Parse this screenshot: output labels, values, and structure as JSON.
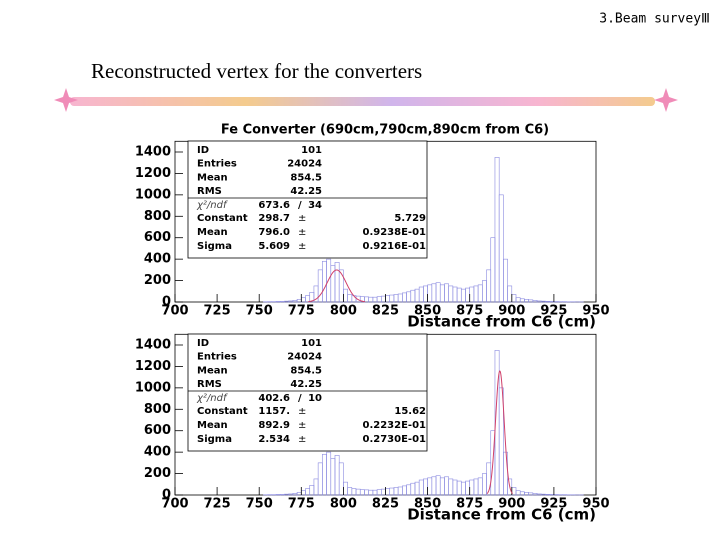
{
  "slide": {
    "section": "3.Beam surveyⅢ",
    "title": "Reconstructed vertex for the converters"
  },
  "chart_data": [
    {
      "type": "histogram",
      "title": "Fe Converter (690cm,790cm,890cm from C6)",
      "x_label": "Distance from C6 (cm)",
      "color": "#8a8ae0",
      "fit_color": "#d0406a",
      "bins": [
        700,
        702.5,
        705,
        707.5,
        710,
        712.5,
        715,
        717.5,
        720,
        722.5,
        725,
        727.5,
        730,
        732.5,
        735,
        737.5,
        740,
        742.5,
        745,
        747.5,
        750,
        752.5,
        755,
        757.5,
        760,
        762.5,
        765,
        767.5,
        770,
        772.5,
        775,
        777.5,
        780,
        782.5,
        785,
        787.5,
        790,
        792.5,
        795,
        797.5,
        800,
        802.5,
        805,
        807.5,
        810,
        812.5,
        815,
        817.5,
        820,
        822.5,
        825,
        827.5,
        830,
        832.5,
        835,
        837.5,
        840,
        842.5,
        845,
        847.5,
        850,
        852.5,
        855,
        857.5,
        860,
        862.5,
        865,
        867.5,
        870,
        872.5,
        875,
        877.5,
        880,
        882.5,
        885,
        887.5,
        890,
        892.5,
        895,
        897.5,
        900,
        902.5,
        905,
        907.5,
        910,
        912.5,
        915,
        917.5,
        920,
        922.5,
        925,
        927.5,
        930,
        932.5,
        935,
        937.5,
        940,
        942.5,
        945,
        947.5,
        950
      ],
      "counts": [
        0,
        0,
        0,
        0,
        0,
        0,
        0,
        0,
        0,
        0,
        0,
        0,
        0,
        0,
        0,
        0,
        0,
        0,
        0,
        0,
        0,
        2,
        3,
        3,
        5,
        5,
        8,
        10,
        15,
        25,
        40,
        60,
        90,
        150,
        300,
        380,
        400,
        340,
        370,
        300,
        120,
        70,
        60,
        55,
        50,
        48,
        45,
        45,
        50,
        55,
        60,
        65,
        70,
        75,
        85,
        95,
        110,
        120,
        140,
        150,
        160,
        170,
        180,
        160,
        170,
        150,
        140,
        130,
        120,
        130,
        140,
        150,
        160,
        200,
        300,
        600,
        1350,
        1000,
        400,
        150,
        70,
        40,
        30,
        25,
        20,
        15,
        10,
        8,
        6,
        5,
        4,
        3,
        3,
        2,
        2,
        1,
        1,
        0,
        0,
        0
      ],
      "xlim": [
        700,
        950
      ],
      "ylim": [
        0,
        1500
      ],
      "xticks": [
        700,
        725,
        750,
        775,
        800,
        825,
        850,
        875,
        900,
        925,
        950
      ],
      "yticks": [
        0,
        200,
        400,
        600,
        800,
        1000,
        1200,
        1400
      ],
      "stats": [
        {
          "name": "ID",
          "value": 101
        },
        {
          "name": "Entries",
          "value": 24024
        },
        {
          "name": "Mean",
          "value": 854.5
        },
        {
          "name": "RMS",
          "value": 42.25
        }
      ],
      "chi2": {
        "name": "χ²/ndf",
        "value": 673.6,
        "separator": "/",
        "ndf": 34
      },
      "fit": {
        "symbol": "±",
        "params": [
          {
            "name": "Constant",
            "value": 298.7,
            "error": 5.729
          },
          {
            "name": "Mean",
            "value": {
              "value": 796.0,
              "label": "796.0"
            },
            "error": {
              "value": 0.09238,
              "label": "0.9238E-01"
            }
          },
          {
            "name": "Sigma",
            "value": 5.609,
            "error": {
              "value": 0.09216,
              "label": "0.9216E-01"
            }
          }
        ]
      }
    },
    {
      "type": "histogram",
      "x_label": "Distance from C6 (cm)",
      "color": "#8a8ae0",
      "fit_color": "#d0406a",
      "bins": [
        700,
        702.5,
        705,
        707.5,
        710,
        712.5,
        715,
        717.5,
        720,
        722.5,
        725,
        727.5,
        730,
        732.5,
        735,
        737.5,
        740,
        742.5,
        745,
        747.5,
        750,
        752.5,
        755,
        757.5,
        760,
        762.5,
        765,
        767.5,
        770,
        772.5,
        775,
        777.5,
        780,
        782.5,
        785,
        787.5,
        790,
        792.5,
        795,
        797.5,
        800,
        802.5,
        805,
        807.5,
        810,
        812.5,
        815,
        817.5,
        820,
        822.5,
        825,
        827.5,
        830,
        832.5,
        835,
        837.5,
        840,
        842.5,
        845,
        847.5,
        850,
        852.5,
        855,
        857.5,
        860,
        862.5,
        865,
        867.5,
        870,
        872.5,
        875,
        877.5,
        880,
        882.5,
        885,
        887.5,
        890,
        892.5,
        895,
        897.5,
        900,
        902.5,
        905,
        907.5,
        910,
        912.5,
        915,
        917.5,
        920,
        922.5,
        925,
        927.5,
        930,
        932.5,
        935,
        937.5,
        940,
        942.5,
        945,
        947.5,
        950
      ],
      "counts": [
        0,
        0,
        0,
        0,
        0,
        0,
        0,
        0,
        0,
        0,
        0,
        0,
        0,
        0,
        0,
        0,
        0,
        0,
        0,
        0,
        0,
        2,
        3,
        3,
        5,
        5,
        8,
        10,
        15,
        25,
        40,
        60,
        90,
        150,
        300,
        380,
        400,
        340,
        370,
        300,
        120,
        70,
        60,
        55,
        50,
        48,
        45,
        45,
        50,
        55,
        60,
        65,
        70,
        75,
        85,
        95,
        110,
        120,
        140,
        150,
        160,
        170,
        180,
        160,
        170,
        150,
        140,
        130,
        120,
        130,
        140,
        150,
        160,
        200,
        300,
        600,
        1350,
        1000,
        400,
        150,
        70,
        40,
        30,
        25,
        20,
        15,
        10,
        8,
        6,
        5,
        4,
        3,
        3,
        2,
        2,
        1,
        1,
        0,
        0,
        0
      ],
      "xlim": [
        700,
        950
      ],
      "ylim": [
        0,
        1500
      ],
      "xticks": [
        700,
        725,
        750,
        775,
        800,
        825,
        850,
        875,
        900,
        925,
        950
      ],
      "yticks": [
        0,
        200,
        400,
        600,
        800,
        1000,
        1200,
        1400
      ],
      "stats": [
        {
          "name": "ID",
          "value": 101
        },
        {
          "name": "Entries",
          "value": 24024
        },
        {
          "name": "Mean",
          "value": 854.5
        },
        {
          "name": "RMS",
          "value": 42.25
        }
      ],
      "chi2": {
        "name": "χ²/ndf",
        "value": 402.6,
        "separator": "/",
        "ndf": 10
      },
      "fit": {
        "symbol": "±",
        "params": [
          {
            "name": "Constant",
            "value": {
              "value": 1157,
              "label": "1157."
            },
            "error": 15.62
          },
          {
            "name": "Mean",
            "value": 892.9,
            "error": {
              "value": 0.02232,
              "label": "0.2232E-01"
            }
          },
          {
            "name": "Sigma",
            "value": 2.534,
            "error": {
              "value": 0.0273,
              "label": "0.2730E-01"
            }
          }
        ]
      }
    }
  ]
}
